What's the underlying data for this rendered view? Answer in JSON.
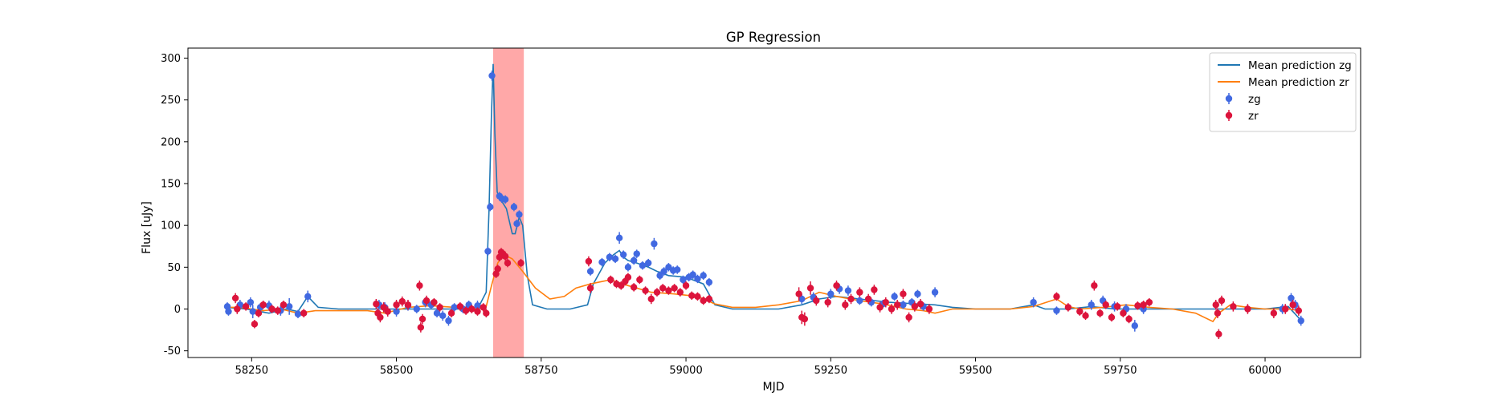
{
  "chart_data": {
    "type": "scatter",
    "title": "GP Regression",
    "xlabel": "MJD",
    "ylabel": "Flux [uJy]",
    "xlim": [
      58140,
      60165
    ],
    "ylim": [
      -58,
      312
    ],
    "xticks": [
      58250,
      58500,
      58750,
      59000,
      59250,
      59500,
      59750,
      60000
    ],
    "yticks": [
      -50,
      0,
      50,
      100,
      150,
      200,
      250,
      300
    ],
    "grid": false,
    "legend_position": "top-right",
    "highlight_band": {
      "x0": 58667,
      "x1": 58720,
      "color": "#ff9999"
    },
    "colors": {
      "zg": "#4169e1",
      "zr": "#dc143c",
      "mean_zg": "#1f77b4",
      "mean_zr": "#ff7f0e"
    },
    "series": [
      {
        "name": "Mean prediction zg",
        "kind": "line",
        "color": "#1f77b4",
        "x": [
          58205,
          58240,
          58280,
          58310,
          58330,
          58347,
          58365,
          58400,
          58470,
          58520,
          58560,
          58600,
          58640,
          58655,
          58660,
          58664,
          58667,
          58670,
          58674,
          58678,
          58690,
          58700,
          58705,
          58712,
          58718,
          58726,
          58735,
          58760,
          58800,
          58830,
          58840,
          58860,
          58875,
          58885,
          58892,
          58900,
          58915,
          58935,
          58950,
          58970,
          59000,
          59030,
          59050,
          59080,
          59120,
          59160,
          59200,
          59230,
          59260,
          59300,
          59350,
          59400,
          59430,
          59460,
          59500,
          59560,
          59600,
          59620,
          59660,
          59700,
          59740,
          59780,
          59820,
          59860,
          59900,
          59940,
          59970,
          60000,
          60040,
          60060
        ],
        "y": [
          2,
          0,
          -5,
          0,
          -3,
          15,
          2,
          0,
          0,
          0,
          0,
          0,
          0,
          20,
          120,
          230,
          293,
          210,
          140,
          133,
          120,
          90,
          90,
          110,
          100,
          40,
          5,
          0,
          0,
          5,
          30,
          55,
          65,
          70,
          62,
          58,
          55,
          50,
          45,
          40,
          38,
          30,
          5,
          0,
          0,
          0,
          5,
          12,
          15,
          12,
          8,
          6,
          5,
          2,
          0,
          0,
          5,
          0,
          0,
          3,
          0,
          0,
          0,
          0,
          0,
          0,
          0,
          0,
          3,
          -12
        ]
      },
      {
        "name": "Mean prediction zr",
        "kind": "line",
        "color": "#ff7f0e",
        "x": [
          58205,
          58230,
          58270,
          58300,
          58330,
          58360,
          58400,
          58450,
          58480,
          58520,
          58560,
          58600,
          58640,
          58655,
          58665,
          58675,
          58685,
          58700,
          58718,
          58740,
          58765,
          58790,
          58810,
          58835,
          58870,
          58900,
          58940,
          58980,
          59020,
          59050,
          59080,
          59120,
          59160,
          59200,
          59230,
          59260,
          59300,
          59340,
          59380,
          59410,
          59430,
          59460,
          59500,
          59560,
          59600,
          59640,
          59660,
          59680,
          59720,
          59760,
          59800,
          59840,
          59880,
          59910,
          59920,
          59940,
          59970,
          60000,
          60040,
          60060
        ],
        "y": [
          2,
          2,
          -2,
          0,
          -5,
          -2,
          -2,
          -2,
          -5,
          2,
          4,
          2,
          0,
          3,
          30,
          55,
          65,
          60,
          45,
          25,
          12,
          15,
          25,
          30,
          35,
          28,
          20,
          18,
          15,
          6,
          2,
          2,
          5,
          10,
          20,
          15,
          10,
          6,
          0,
          -2,
          -5,
          0,
          0,
          0,
          3,
          12,
          3,
          0,
          2,
          5,
          2,
          0,
          -5,
          -15,
          -5,
          5,
          2,
          0,
          0,
          -2
        ]
      },
      {
        "name": "zg",
        "kind": "errorbar",
        "color": "#4169e1",
        "points": [
          [
            58208,
            3,
            5
          ],
          [
            58210,
            -3,
            5
          ],
          [
            58230,
            5,
            6
          ],
          [
            58248,
            8,
            6
          ],
          [
            58252,
            -3,
            8
          ],
          [
            58265,
            2,
            5
          ],
          [
            58280,
            4,
            6
          ],
          [
            58300,
            -2,
            6
          ],
          [
            58315,
            3,
            10
          ],
          [
            58330,
            -6,
            5
          ],
          [
            58347,
            15,
            7
          ],
          [
            58470,
            5,
            6
          ],
          [
            58480,
            2,
            6
          ],
          [
            58500,
            -3,
            6
          ],
          [
            58520,
            4,
            6
          ],
          [
            58535,
            0,
            5
          ],
          [
            58550,
            8,
            6
          ],
          [
            58560,
            5,
            5
          ],
          [
            58570,
            -5,
            5
          ],
          [
            58580,
            -8,
            6
          ],
          [
            58590,
            -14,
            6
          ],
          [
            58600,
            2,
            5
          ],
          [
            58615,
            0,
            5
          ],
          [
            58625,
            5,
            5
          ],
          [
            58640,
            4,
            6
          ],
          [
            58658,
            69,
            5
          ],
          [
            58662,
            122,
            5
          ],
          [
            58665,
            279,
            6
          ],
          [
            58678,
            135,
            5
          ],
          [
            58682,
            132,
            5
          ],
          [
            58688,
            131,
            5
          ],
          [
            58703,
            122,
            5
          ],
          [
            58708,
            102,
            5
          ],
          [
            58712,
            113,
            5
          ],
          [
            58835,
            45,
            5
          ],
          [
            58855,
            56,
            5
          ],
          [
            58868,
            62,
            5
          ],
          [
            58878,
            60,
            5
          ],
          [
            58885,
            85,
            7
          ],
          [
            58892,
            65,
            5
          ],
          [
            58900,
            50,
            5
          ],
          [
            58910,
            58,
            5
          ],
          [
            58915,
            66,
            5
          ],
          [
            58925,
            52,
            5
          ],
          [
            58935,
            55,
            5
          ],
          [
            58945,
            78,
            7
          ],
          [
            58955,
            40,
            5
          ],
          [
            58962,
            45,
            5
          ],
          [
            58970,
            50,
            5
          ],
          [
            58978,
            46,
            5
          ],
          [
            58985,
            47,
            5
          ],
          [
            58995,
            35,
            5
          ],
          [
            59005,
            38,
            5
          ],
          [
            59012,
            41,
            5
          ],
          [
            59020,
            36,
            5
          ],
          [
            59030,
            40,
            5
          ],
          [
            59040,
            32,
            5
          ],
          [
            59200,
            12,
            6
          ],
          [
            59220,
            14,
            6
          ],
          [
            59250,
            18,
            6
          ],
          [
            59265,
            24,
            6
          ],
          [
            59280,
            22,
            6
          ],
          [
            59300,
            10,
            5
          ],
          [
            59320,
            8,
            5
          ],
          [
            59340,
            6,
            5
          ],
          [
            59360,
            15,
            5
          ],
          [
            59375,
            5,
            5
          ],
          [
            59390,
            8,
            5
          ],
          [
            59400,
            18,
            5
          ],
          [
            59410,
            3,
            5
          ],
          [
            59430,
            20,
            6
          ],
          [
            59600,
            8,
            6
          ],
          [
            59640,
            -2,
            5
          ],
          [
            59700,
            5,
            6
          ],
          [
            59720,
            10,
            6
          ],
          [
            59740,
            3,
            6
          ],
          [
            59760,
            0,
            6
          ],
          [
            59775,
            -20,
            7
          ],
          [
            59790,
            0,
            6
          ],
          [
            60030,
            0,
            6
          ],
          [
            60045,
            13,
            6
          ],
          [
            60052,
            5,
            6
          ],
          [
            60062,
            -14,
            6
          ]
        ]
      },
      {
        "name": "zr",
        "kind": "errorbar",
        "color": "#dc143c",
        "points": [
          [
            58222,
            13,
            6
          ],
          [
            58225,
            0,
            6
          ],
          [
            58240,
            3,
            5
          ],
          [
            58255,
            -18,
            5
          ],
          [
            58262,
            -5,
            5
          ],
          [
            58270,
            5,
            5
          ],
          [
            58285,
            0,
            5
          ],
          [
            58295,
            -2,
            5
          ],
          [
            58305,
            5,
            5
          ],
          [
            58340,
            -5,
            5
          ],
          [
            58465,
            6,
            6
          ],
          [
            58468,
            -5,
            6
          ],
          [
            58472,
            -10,
            6
          ],
          [
            58478,
            2,
            6
          ],
          [
            58485,
            -3,
            6
          ],
          [
            58500,
            5,
            6
          ],
          [
            58510,
            9,
            6
          ],
          [
            58520,
            5,
            6
          ],
          [
            58540,
            28,
            6
          ],
          [
            58542,
            -22,
            6
          ],
          [
            58545,
            -12,
            6
          ],
          [
            58552,
            10,
            6
          ],
          [
            58565,
            8,
            5
          ],
          [
            58575,
            2,
            5
          ],
          [
            58595,
            -5,
            5
          ],
          [
            58610,
            3,
            5
          ],
          [
            58620,
            -2,
            5
          ],
          [
            58630,
            0,
            5
          ],
          [
            58640,
            -3,
            5
          ],
          [
            58650,
            2,
            5
          ],
          [
            58655,
            -5,
            5
          ],
          [
            58672,
            42,
            5
          ],
          [
            58675,
            48,
            5
          ],
          [
            58678,
            62,
            5
          ],
          [
            58681,
            68,
            5
          ],
          [
            58684,
            66,
            5
          ],
          [
            58688,
            63,
            5
          ],
          [
            58692,
            55,
            5
          ],
          [
            58715,
            55,
            5
          ],
          [
            58832,
            57,
            6
          ],
          [
            58835,
            25,
            6
          ],
          [
            58870,
            35,
            5
          ],
          [
            58880,
            30,
            5
          ],
          [
            58888,
            28,
            5
          ],
          [
            58895,
            33,
            5
          ],
          [
            58900,
            38,
            5
          ],
          [
            58910,
            26,
            5
          ],
          [
            58920,
            35,
            5
          ],
          [
            58930,
            22,
            5
          ],
          [
            58940,
            12,
            6
          ],
          [
            58950,
            20,
            5
          ],
          [
            58960,
            25,
            5
          ],
          [
            58970,
            22,
            5
          ],
          [
            58980,
            25,
            5
          ],
          [
            58990,
            20,
            5
          ],
          [
            59000,
            28,
            5
          ],
          [
            59010,
            16,
            5
          ],
          [
            59020,
            15,
            5
          ],
          [
            59030,
            10,
            5
          ],
          [
            59040,
            12,
            5
          ],
          [
            59195,
            18,
            8
          ],
          [
            59200,
            -10,
            8
          ],
          [
            59205,
            -12,
            8
          ],
          [
            59215,
            25,
            8
          ],
          [
            59225,
            10,
            6
          ],
          [
            59245,
            8,
            6
          ],
          [
            59260,
            28,
            6
          ],
          [
            59275,
            5,
            6
          ],
          [
            59285,
            12,
            6
          ],
          [
            59300,
            20,
            6
          ],
          [
            59315,
            12,
            6
          ],
          [
            59325,
            23,
            6
          ],
          [
            59335,
            2,
            6
          ],
          [
            59345,
            8,
            6
          ],
          [
            59355,
            0,
            6
          ],
          [
            59365,
            5,
            6
          ],
          [
            59375,
            18,
            6
          ],
          [
            59385,
            -10,
            6
          ],
          [
            59395,
            3,
            6
          ],
          [
            59405,
            6,
            6
          ],
          [
            59420,
            0,
            6
          ],
          [
            59640,
            15,
            5
          ],
          [
            59660,
            2,
            5
          ],
          [
            59680,
            -3,
            5
          ],
          [
            59690,
            -8,
            5
          ],
          [
            59705,
            28,
            6
          ],
          [
            59715,
            -5,
            5
          ],
          [
            59725,
            5,
            5
          ],
          [
            59735,
            -10,
            5
          ],
          [
            59745,
            3,
            5
          ],
          [
            59755,
            -5,
            5
          ],
          [
            59765,
            -12,
            5
          ],
          [
            59780,
            4,
            5
          ],
          [
            59790,
            5,
            5
          ],
          [
            59800,
            8,
            5
          ],
          [
            59915,
            5,
            6
          ],
          [
            59918,
            -5,
            6
          ],
          [
            59920,
            -30,
            6
          ],
          [
            59925,
            10,
            6
          ],
          [
            59945,
            3,
            6
          ],
          [
            59970,
            0,
            6
          ],
          [
            60015,
            -5,
            6
          ],
          [
            60035,
            0,
            6
          ],
          [
            60048,
            5,
            6
          ],
          [
            60058,
            -2,
            6
          ]
        ]
      }
    ]
  }
}
